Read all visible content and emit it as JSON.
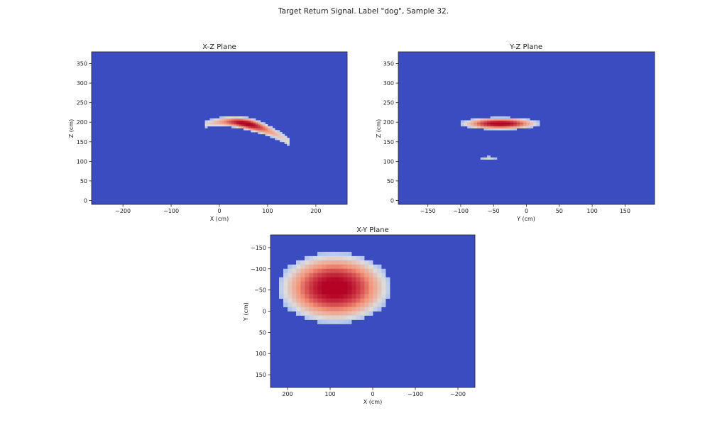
{
  "figure_title": "Target Return Signal. Label \"dog\", Sample 32.",
  "colors": {
    "background_field": "#3b4cc0",
    "colormap": "coolwarm",
    "cold": "#3b4cc0",
    "mid": "#dddddd",
    "hot": "#b40426"
  },
  "chart_data": [
    {
      "type": "heatmap",
      "title": "X-Z Plane",
      "xlabel": "X (cm)",
      "ylabel": "Z (cm)",
      "xlim": [
        -265,
        265
      ],
      "ylim": [
        -10,
        380
      ],
      "x_ticks": [
        -200,
        -100,
        0,
        100,
        200
      ],
      "y_ticks": [
        0,
        50,
        100,
        150,
        200,
        250,
        300,
        350
      ],
      "y_inverted": false,
      "x_inverted": false,
      "grid": false,
      "blobs": [
        {
          "shape": "arc",
          "x_range": [
            -30,
            145
          ],
          "z_at_start": 195,
          "z_peak": 205,
          "z_at_end": 150,
          "thickness": 35,
          "peak_x": 55,
          "peak_z": 192,
          "peak_intensity": 1.0
        }
      ]
    },
    {
      "type": "heatmap",
      "title": "Y-Z Plane",
      "xlabel": "Y (cm)",
      "ylabel": "Z (cm)",
      "xlim": [
        -195,
        195
      ],
      "ylim": [
        -10,
        380
      ],
      "x_ticks": [
        -150,
        -100,
        -50,
        0,
        50,
        100,
        150
      ],
      "y_ticks": [
        0,
        50,
        100,
        150,
        200,
        250,
        300,
        350
      ],
      "y_inverted": false,
      "x_inverted": false,
      "grid": false,
      "blobs": [
        {
          "shape": "ellipse",
          "center": [
            -40,
            197
          ],
          "radius": [
            62,
            16
          ],
          "peak_intensity": 1.0
        },
        {
          "shape": "ellipse",
          "center": [
            -58,
            108
          ],
          "radius": [
            12,
            5
          ],
          "peak_intensity": 0.2
        }
      ]
    },
    {
      "type": "heatmap",
      "title": "X-Y Plane",
      "xlabel": "X (cm)",
      "ylabel": "Y (cm)",
      "xlim": [
        240,
        -240
      ],
      "ylim": [
        -180,
        180
      ],
      "x_ticks": [
        200,
        100,
        0,
        -100,
        -200
      ],
      "y_ticks": [
        -150,
        -100,
        -50,
        0,
        50,
        100,
        150
      ],
      "y_inverted": true,
      "x_inverted": true,
      "grid": false,
      "pixelated": true,
      "cell_size": 10,
      "blobs": [
        {
          "shape": "ellipse",
          "center": [
            90,
            -55
          ],
          "radius": [
            135,
            85
          ],
          "peak_intensity": 1.0
        }
      ]
    }
  ]
}
